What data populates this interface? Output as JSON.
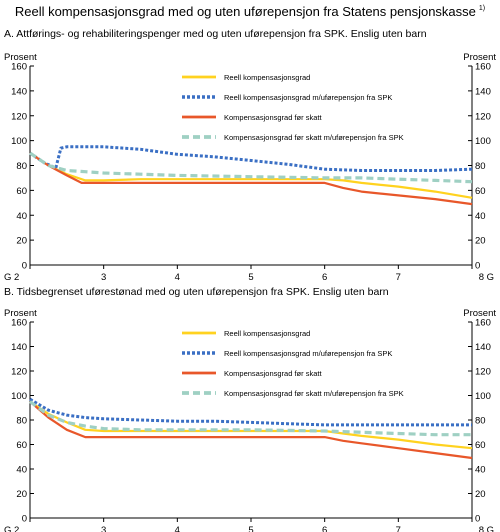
{
  "title": "Reell kompensasjonsgrad med og uten uførepensjon fra Statens pensjonskasse",
  "footnote_marker": "1)",
  "colors": {
    "reell": "#ffd21f",
    "reell_spk": "#3a6fc4",
    "for_skatt": "#e8572a",
    "for_skatt_spk": "#9fd0c3"
  },
  "chart_data": [
    {
      "panel_title": "A.  Attførings- og rehabiliteringspenger med og uten uførepensjon fra SPK. Enslig uten barn",
      "type": "line",
      "ylabel_left": "Prosent",
      "ylabel_right": "Prosent",
      "ylim": [
        0,
        160
      ],
      "yticks": [
        0,
        20,
        40,
        60,
        80,
        100,
        120,
        140,
        160
      ],
      "xlim": [
        2,
        8
      ],
      "xticks": [
        "G 2",
        "3",
        "4",
        "5",
        "6",
        "7",
        "8 G"
      ],
      "legend_position": "top-center",
      "grid": false,
      "series": [
        {
          "name": "Reell kompensasjonsgrad",
          "color_key": "reell",
          "dash": "solid",
          "x": [
            2,
            2.25,
            2.5,
            2.75,
            3,
            3.5,
            4,
            5,
            5.5,
            6,
            6.25,
            6.5,
            7,
            7.5,
            8
          ],
          "y": [
            90,
            80,
            73,
            68,
            68,
            69,
            69,
            69,
            69,
            69,
            68,
            66,
            63,
            59,
            54
          ]
        },
        {
          "name": "Reell kompensasjonsgrad m/uførepensjon fra SPK",
          "color_key": "reell_spk",
          "dash": "dotted",
          "x": [
            2,
            2.2,
            2.35,
            2.42,
            2.5,
            2.75,
            3,
            3.5,
            4,
            4.5,
            5,
            5.5,
            6,
            6.5,
            7,
            7.5,
            8
          ],
          "y": [
            90,
            82,
            78,
            94,
            95,
            95,
            95,
            93,
            89,
            87,
            84,
            81,
            77,
            76,
            76,
            76,
            77
          ]
        },
        {
          "name": "Kompensasjonsgrad før skatt",
          "color_key": "for_skatt",
          "dash": "solid",
          "x": [
            2,
            2.25,
            2.5,
            2.7,
            3,
            4,
            5,
            6,
            6.25,
            6.5,
            7,
            7.5,
            8
          ],
          "y": [
            90,
            80,
            72,
            66,
            66,
            66,
            66,
            66,
            62,
            59,
            56,
            53,
            49
          ]
        },
        {
          "name": "Kompensasjonsgrad før skatt m/uførepensjon fra SPK",
          "color_key": "for_skatt_spk",
          "dash": "dashed",
          "x": [
            2,
            2.25,
            2.5,
            2.75,
            3,
            3.5,
            4,
            5,
            6,
            6.5,
            7,
            7.5,
            8
          ],
          "y": [
            90,
            80,
            76,
            75,
            74,
            73,
            72,
            71,
            70,
            70,
            69,
            68,
            67
          ]
        }
      ]
    },
    {
      "panel_title": "B.  Tidsbegrenset uførestønad med og uten uførepensjon fra SPK. Enslig uten barn",
      "type": "line",
      "ylabel_left": "Prosent",
      "ylabel_right": "Prosent",
      "ylim": [
        0,
        160
      ],
      "yticks": [
        0,
        20,
        40,
        60,
        80,
        100,
        120,
        140,
        160
      ],
      "xlim": [
        2,
        8
      ],
      "xticks": [
        "G 2",
        "3",
        "4",
        "5",
        "6",
        "7",
        "8 G"
      ],
      "legend_position": "top-center",
      "grid": false,
      "series": [
        {
          "name": "Reell kompensasjonsgrad",
          "color_key": "reell",
          "dash": "solid",
          "x": [
            2,
            2.25,
            2.5,
            2.75,
            3,
            3.5,
            4,
            5,
            5.5,
            6,
            6.25,
            6.5,
            7,
            7.5,
            8
          ],
          "y": [
            95,
            85,
            78,
            72,
            71,
            71,
            71,
            71,
            71,
            71,
            69,
            67,
            64,
            60,
            57
          ]
        },
        {
          "name": "Reell kompensasjonsgrad m/uførepensjon fra SPK",
          "color_key": "reell_spk",
          "dash": "dotted",
          "x": [
            2,
            2.25,
            2.5,
            2.75,
            3,
            3.5,
            4,
            4.5,
            5,
            5.5,
            6,
            6.5,
            7,
            7.5,
            8
          ],
          "y": [
            97,
            88,
            84,
            82,
            81,
            80,
            79,
            79,
            78,
            77,
            76,
            76,
            76,
            76,
            76
          ]
        },
        {
          "name": "Kompensasjonsgrad før skatt",
          "color_key": "for_skatt",
          "dash": "solid",
          "x": [
            2,
            2.25,
            2.5,
            2.75,
            3,
            4,
            5,
            6,
            6.25,
            6.5,
            7,
            7.5,
            8
          ],
          "y": [
            95,
            82,
            72,
            66,
            66,
            66,
            66,
            66,
            63,
            61,
            57,
            53,
            49
          ]
        },
        {
          "name": "Kompensasjonsgrad før skatt m/uførepensjon fra SPK",
          "color_key": "for_skatt_spk",
          "dash": "dashed",
          "x": [
            2,
            2.25,
            2.5,
            2.75,
            3,
            3.5,
            4,
            5,
            6,
            6.5,
            7,
            7.5,
            8
          ],
          "y": [
            95,
            84,
            78,
            75,
            73,
            72,
            72,
            72,
            71,
            70,
            69,
            68,
            68
          ]
        }
      ]
    }
  ]
}
